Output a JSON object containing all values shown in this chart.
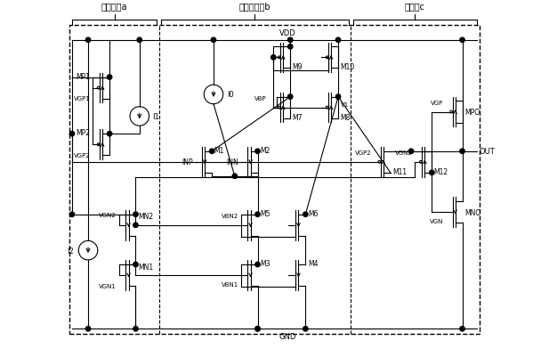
{
  "figsize": [
    6.17,
    4.02
  ],
  "dpi": 100,
  "bg_color": "#ffffff",
  "line_color": "#000000",
  "section_labels": [
    "偏置电路a",
    "差分输入级b",
    "输出级c"
  ],
  "vdd_label": "VDD",
  "gnd_label": "GND"
}
